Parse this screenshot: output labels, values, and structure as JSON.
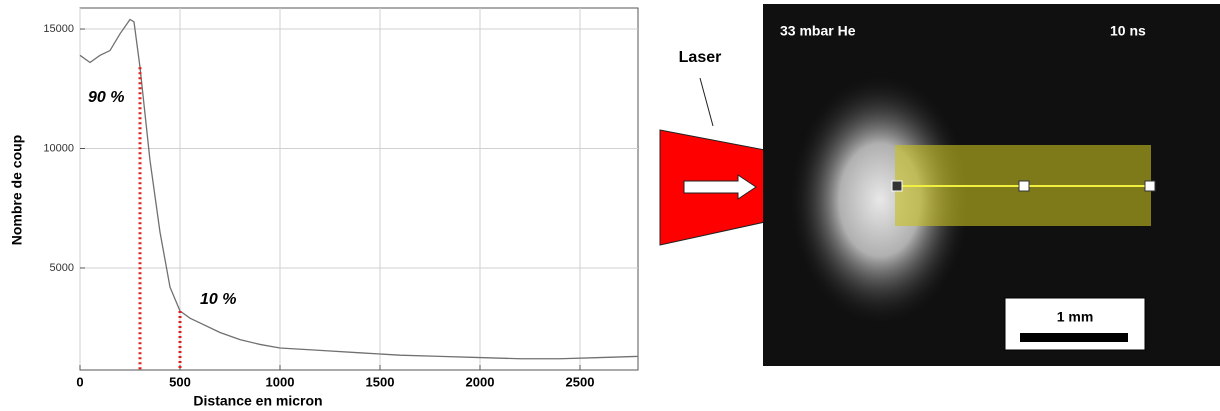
{
  "chart_data": {
    "type": "line",
    "x_label": "Distance en micron",
    "y_label": "Nombre de coup",
    "x": [
      0,
      50,
      100,
      150,
      200,
      250,
      270,
      300,
      350,
      400,
      450,
      500,
      550,
      600,
      700,
      800,
      900,
      1000,
      1200,
      1400,
      1500,
      1600,
      1800,
      2000,
      2200,
      2400,
      2600,
      2790
    ],
    "values": [
      13900,
      13600,
      13900,
      14100,
      14800,
      15400,
      15300,
      13400,
      9500,
      6500,
      4200,
      3200,
      2900,
      2700,
      2300,
      2000,
      1800,
      1650,
      1550,
      1450,
      1400,
      1350,
      1300,
      1250,
      1200,
      1200,
      1250,
      1300
    ],
    "color": "#707070",
    "xlim": [
      0,
      2790
    ],
    "xticks": [
      0,
      500,
      1000,
      1500,
      2000,
      2500
    ],
    "ylim": [
      730,
      15880
    ],
    "yticks": [
      5000,
      10000,
      15000
    ],
    "grid": true,
    "markers": [
      {
        "x": 300,
        "y": 13400,
        "label": "90 %"
      },
      {
        "x": 500,
        "y": 3200,
        "label": "10 %"
      }
    ],
    "marker_color": "#e0201c"
  },
  "laser_label": "Laser",
  "image_panel": {
    "pressure": "33 mbar He",
    "time": "10 ns",
    "scale": "1 mm"
  }
}
